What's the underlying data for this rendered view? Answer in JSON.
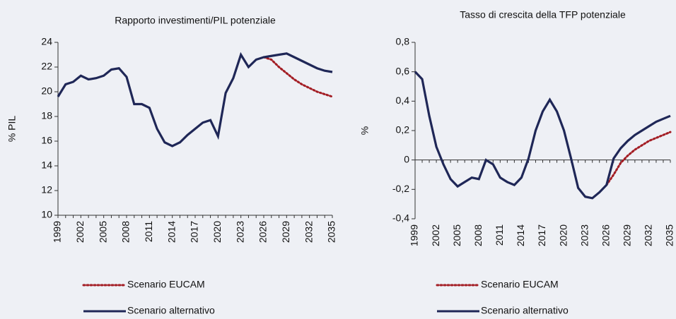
{
  "chart_data": [
    {
      "type": "line",
      "title": "Rapporto investimenti/PIL potenziale",
      "ylabel": "% PIL",
      "x": [
        1999,
        2000,
        2001,
        2002,
        2003,
        2004,
        2005,
        2006,
        2007,
        2008,
        2009,
        2010,
        2011,
        2012,
        2013,
        2014,
        2015,
        2016,
        2017,
        2018,
        2019,
        2020,
        2021,
        2022,
        2023,
        2024,
        2025,
        2026,
        2027,
        2028,
        2029,
        2030,
        2031,
        2032,
        2033,
        2034,
        2035
      ],
      "xlim": [
        1999,
        2035
      ],
      "xticks": [
        1999,
        2002,
        2005,
        2008,
        2011,
        2014,
        2017,
        2020,
        2023,
        2026,
        2029,
        2032,
        2035
      ],
      "ylim": [
        10,
        24
      ],
      "yticks": [
        10,
        12,
        14,
        16,
        18,
        20,
        22,
        24
      ],
      "series": [
        {
          "name": "Scenario EUCAM",
          "color": "#a31d24",
          "dash": true,
          "values": [
            null,
            null,
            null,
            null,
            null,
            null,
            null,
            null,
            null,
            null,
            null,
            null,
            null,
            null,
            null,
            null,
            null,
            null,
            null,
            null,
            null,
            null,
            null,
            null,
            null,
            null,
            null,
            22.8,
            22.6,
            22.0,
            21.5,
            21.0,
            20.6,
            20.3,
            20.0,
            19.8,
            19.6
          ]
        },
        {
          "name": "Scenario alternativo",
          "color": "#1f2757",
          "dash": false,
          "values": [
            19.6,
            20.6,
            20.8,
            21.3,
            21.0,
            21.1,
            21.3,
            21.8,
            21.9,
            21.2,
            19.0,
            19.0,
            18.7,
            17.0,
            15.9,
            15.6,
            15.9,
            16.5,
            17.0,
            17.5,
            17.7,
            16.4,
            19.9,
            21.1,
            23.0,
            22.0,
            22.6,
            22.8,
            22.9,
            23.0,
            23.1,
            22.8,
            22.5,
            22.2,
            21.9,
            21.7,
            21.6
          ]
        }
      ]
    },
    {
      "type": "line",
      "title": "Tasso di crescita della TFP potenziale",
      "ylabel": "%",
      "x": [
        1999,
        2000,
        2001,
        2002,
        2003,
        2004,
        2005,
        2006,
        2007,
        2008,
        2009,
        2010,
        2011,
        2012,
        2013,
        2014,
        2015,
        2016,
        2017,
        2018,
        2019,
        2020,
        2021,
        2022,
        2023,
        2024,
        2025,
        2026,
        2027,
        2028,
        2029,
        2030,
        2031,
        2032,
        2033,
        2034,
        2035
      ],
      "xlim": [
        1999,
        2035
      ],
      "xticks": [
        1999,
        2002,
        2005,
        2008,
        2011,
        2014,
        2017,
        2020,
        2023,
        2026,
        2029,
        2032,
        2035
      ],
      "ylim": [
        -0.4,
        0.8
      ],
      "yticks": [
        {
          "value": -0.4,
          "label": "-0,4"
        },
        {
          "value": -0.2,
          "label": "-0,2"
        },
        0,
        {
          "value": 0.2,
          "label": "0,2"
        },
        {
          "value": 0.4,
          "label": "0,4"
        },
        {
          "value": 0.6,
          "label": "0,6"
        },
        {
          "value": 0.8,
          "label": "0,8"
        }
      ],
      "series": [
        {
          "name": "Scenario EUCAM",
          "color": "#a31d24",
          "dash": true,
          "values": [
            null,
            null,
            null,
            null,
            null,
            null,
            null,
            null,
            null,
            null,
            null,
            null,
            null,
            null,
            null,
            null,
            null,
            null,
            null,
            null,
            null,
            null,
            null,
            null,
            null,
            null,
            null,
            -0.17,
            -0.1,
            -0.02,
            0.03,
            0.07,
            0.1,
            0.13,
            0.15,
            0.17,
            0.19
          ]
        },
        {
          "name": "Scenario alternativo",
          "color": "#1f2757",
          "dash": false,
          "values": [
            0.6,
            0.55,
            0.3,
            0.09,
            -0.03,
            -0.13,
            -0.18,
            -0.15,
            -0.12,
            -0.13,
            0.0,
            -0.03,
            -0.12,
            -0.15,
            -0.17,
            -0.12,
            0.01,
            0.2,
            0.33,
            0.41,
            0.33,
            0.2,
            0.01,
            -0.19,
            -0.25,
            -0.26,
            -0.22,
            -0.17,
            0.01,
            0.08,
            0.13,
            0.17,
            0.2,
            0.23,
            0.26,
            0.28,
            0.3
          ]
        }
      ]
    }
  ]
}
